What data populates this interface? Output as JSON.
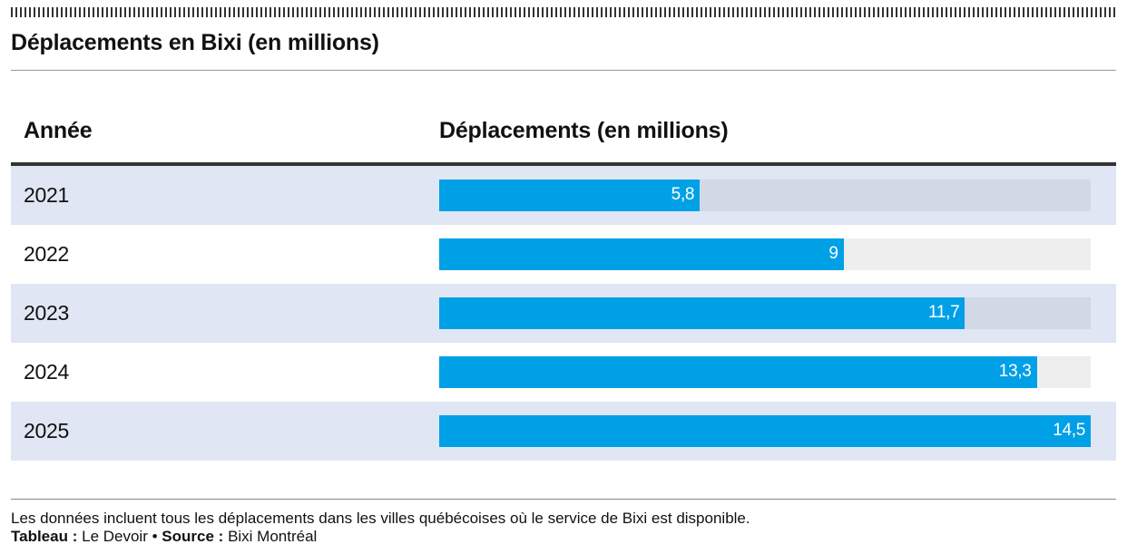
{
  "header": {
    "title": "Déplacements en Bixi (en millions)"
  },
  "table": {
    "col_year": "Année",
    "col_trips": "Déplacements (en millions)"
  },
  "chart_data": {
    "type": "bar",
    "orientation": "horizontal",
    "title": "Déplacements en Bixi (en millions)",
    "xlabel": "Déplacements (en millions)",
    "ylabel": "Année",
    "xlim": [
      0,
      14.5
    ],
    "categories": [
      "2021",
      "2022",
      "2023",
      "2024",
      "2025"
    ],
    "values": [
      5.8,
      9,
      11.7,
      13.3,
      14.5
    ],
    "value_labels": [
      "5,8",
      "9",
      "11,7",
      "13,3",
      "14,5"
    ],
    "bar_color": "#00a0e6",
    "track_color_shaded": "#d2d9e6",
    "track_color_plain": "#eeeeee"
  },
  "footer": {
    "note": "Les données incluent tous les déplacements dans les villes québécoises où le service de Bixi est disponible.",
    "tableau_label": "Tableau :",
    "tableau_value": "Le Devoir",
    "separator": "•",
    "source_label": "Source :",
    "source_value": "Bixi Montréal"
  }
}
